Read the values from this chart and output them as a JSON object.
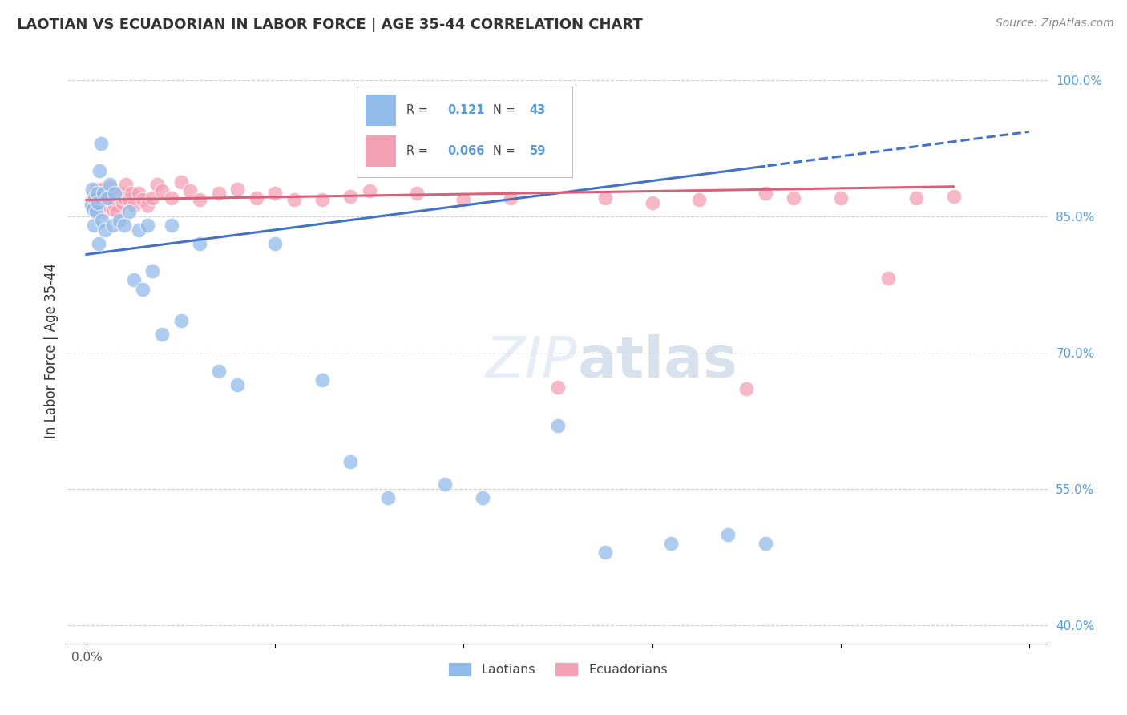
{
  "title": "LAOTIAN VS ECUADORIAN IN LABOR FORCE | AGE 35-44 CORRELATION CHART",
  "source": "Source: ZipAtlas.com",
  "ylabel": "In Labor Force | Age 35-44",
  "legend_R_blue": "0.121",
  "legend_N_blue": "43",
  "legend_R_pink": "0.066",
  "legend_N_pink": "59",
  "blue_color": "#92bcea",
  "pink_color": "#f4a0b5",
  "line_blue": "#4472c4",
  "line_pink": "#d9607a",
  "background_color": "#ffffff",
  "blue_x": [
    0.005,
    0.006,
    0.007,
    0.008,
    0.009,
    0.01,
    0.011,
    0.012,
    0.013,
    0.014,
    0.015,
    0.016,
    0.018,
    0.02,
    0.022,
    0.025,
    0.028,
    0.03,
    0.035,
    0.04,
    0.045,
    0.05,
    0.055,
    0.06,
    0.065,
    0.07,
    0.08,
    0.09,
    0.1,
    0.12,
    0.14,
    0.16,
    0.2,
    0.25,
    0.28,
    0.32,
    0.38,
    0.42,
    0.5,
    0.55,
    0.62,
    0.68,
    0.72
  ],
  "blue_y": [
    0.862,
    0.88,
    0.858,
    0.84,
    0.87,
    0.855,
    0.875,
    0.865,
    0.82,
    0.9,
    0.93,
    0.845,
    0.875,
    0.835,
    0.87,
    0.885,
    0.84,
    0.875,
    0.845,
    0.84,
    0.855,
    0.78,
    0.835,
    0.77,
    0.84,
    0.79,
    0.72,
    0.84,
    0.735,
    0.82,
    0.68,
    0.665,
    0.82,
    0.67,
    0.58,
    0.54,
    0.555,
    0.54,
    0.62,
    0.48,
    0.49,
    0.5,
    0.49
  ],
  "pink_x": [
    0.005,
    0.007,
    0.008,
    0.01,
    0.011,
    0.012,
    0.013,
    0.014,
    0.015,
    0.016,
    0.017,
    0.018,
    0.019,
    0.02,
    0.022,
    0.024,
    0.026,
    0.028,
    0.03,
    0.032,
    0.035,
    0.038,
    0.04,
    0.042,
    0.045,
    0.048,
    0.05,
    0.055,
    0.06,
    0.065,
    0.07,
    0.075,
    0.08,
    0.09,
    0.1,
    0.11,
    0.12,
    0.14,
    0.16,
    0.18,
    0.2,
    0.22,
    0.25,
    0.28,
    0.3,
    0.35,
    0.4,
    0.45,
    0.5,
    0.55,
    0.6,
    0.65,
    0.7,
    0.72,
    0.75,
    0.8,
    0.85,
    0.88,
    0.92
  ],
  "pink_y": [
    0.865,
    0.87,
    0.862,
    0.88,
    0.875,
    0.865,
    0.858,
    0.872,
    0.868,
    0.88,
    0.862,
    0.855,
    0.87,
    0.875,
    0.862,
    0.87,
    0.882,
    0.858,
    0.862,
    0.855,
    0.875,
    0.865,
    0.87,
    0.885,
    0.868,
    0.875,
    0.862,
    0.875,
    0.868,
    0.862,
    0.87,
    0.885,
    0.878,
    0.87,
    0.888,
    0.878,
    0.868,
    0.875,
    0.88,
    0.87,
    0.875,
    0.868,
    0.868,
    0.872,
    0.878,
    0.875,
    0.868,
    0.87,
    0.662,
    0.87,
    0.865,
    0.868,
    0.66,
    0.875,
    0.87,
    0.87,
    0.782,
    0.87,
    0.872
  ]
}
